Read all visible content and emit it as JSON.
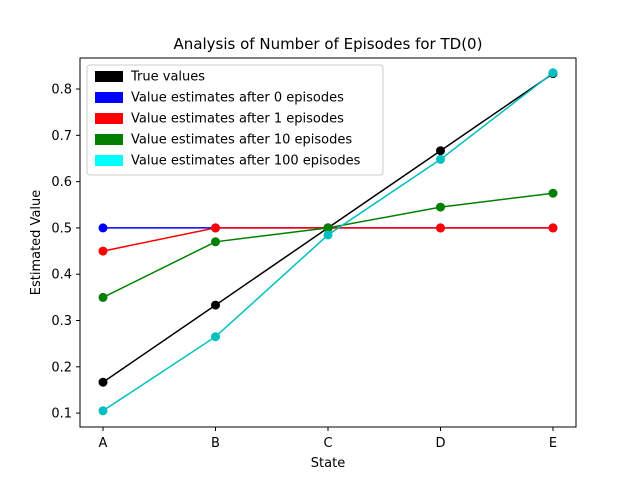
{
  "chart_data": {
    "type": "line",
    "title": "Analysis of Number of Episodes for TD(0)",
    "xlabel": "State",
    "ylabel": "Estimated Value",
    "categories": [
      "A",
      "B",
      "C",
      "D",
      "E"
    ],
    "ylim": [
      0.07,
      0.867
    ],
    "yticks": [
      0.1,
      0.2,
      0.3,
      0.4,
      0.5,
      0.6,
      0.7,
      0.8
    ],
    "ytick_labels": [
      "0.1",
      "0.2",
      "0.3",
      "0.4",
      "0.5",
      "0.6",
      "0.7",
      "0.8"
    ],
    "grid": false,
    "legend_position": "top-left",
    "series": [
      {
        "name": "True values",
        "color": "#000000",
        "legend_color": "#000000",
        "values": [
          0.1667,
          0.3333,
          0.5,
          0.6667,
          0.8333
        ]
      },
      {
        "name": "Value estimates after 0 episodes",
        "color": "#0000ff",
        "legend_color": "#0000ff",
        "values": [
          0.5,
          0.5,
          0.5,
          0.5,
          0.5
        ]
      },
      {
        "name": "Value estimates after 1 episodes",
        "color": "#ff0000",
        "legend_color": "#ff0000",
        "values": [
          0.45,
          0.5,
          0.5,
          0.5,
          0.5
        ]
      },
      {
        "name": "Value estimates after 10 episodes",
        "color": "#008000",
        "legend_color": "#008000",
        "values": [
          0.35,
          0.47,
          0.5,
          0.545,
          0.575
        ]
      },
      {
        "name": "Value estimates after 100 episodes",
        "color": "#00bfbf",
        "legend_color": "#00ffff",
        "values": [
          0.105,
          0.265,
          0.485,
          0.648,
          0.835
        ]
      }
    ]
  }
}
